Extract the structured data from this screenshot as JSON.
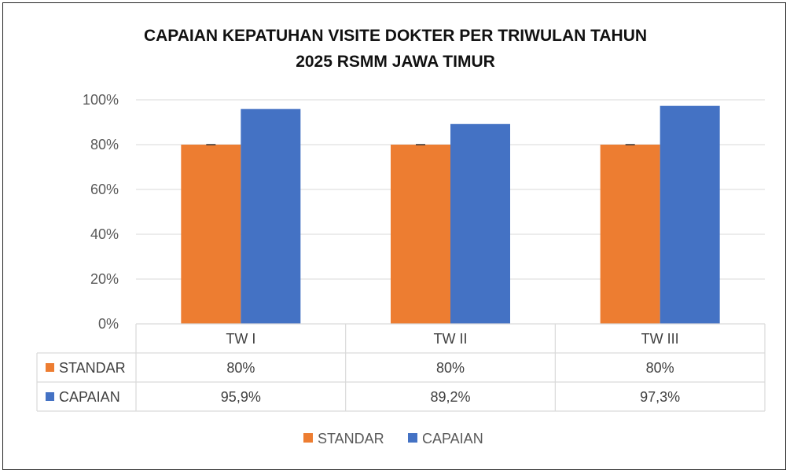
{
  "chart_data": {
    "type": "bar",
    "title_lines": [
      "CAPAIAN KEPATUHAN VISITE DOKTER PER TRIWULAN TAHUN",
      "2025 RSMM JAWA TIMUR"
    ],
    "categories": [
      "TW I",
      "TW II",
      "TW III"
    ],
    "series": [
      {
        "name": "STANDAR",
        "color": "#ED7D31",
        "values": [
          80,
          80,
          80
        ],
        "labels": [
          "80%",
          "80%",
          "80%"
        ]
      },
      {
        "name": "CAPAIAN",
        "color": "#4472C4",
        "values": [
          95.9,
          89.2,
          97.3
        ],
        "labels": [
          "95,9%",
          "89,2%",
          "97,3%"
        ]
      }
    ],
    "y_ticks": [
      "0%",
      "20%",
      "40%",
      "60%",
      "80%",
      "100%"
    ],
    "ylim": [
      0,
      100
    ],
    "grid": true,
    "data_table": true,
    "legend_position": "bottom",
    "standar_line_marker": true
  }
}
